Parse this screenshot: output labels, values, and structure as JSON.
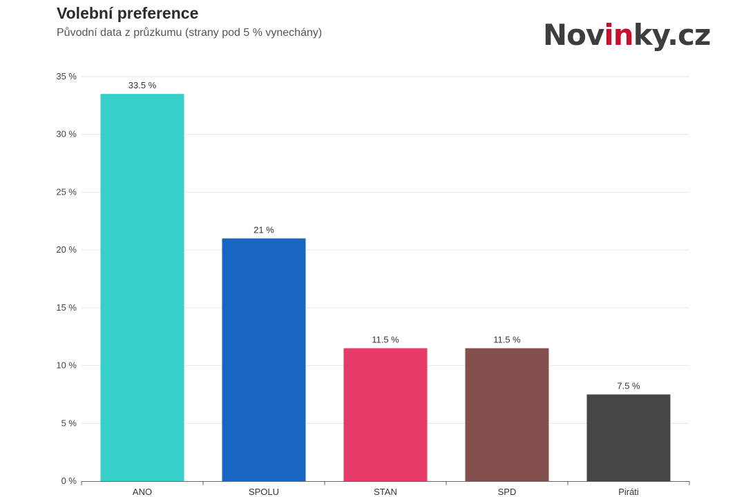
{
  "header": {
    "title": "Volební preference",
    "subtitle": "Původní data z průzkumu (strany pod 5 % vynechány)"
  },
  "logo": {
    "part1": "Nov",
    "accent": "in",
    "part2": "ky.cz",
    "accent_color": "#c8102e"
  },
  "chart_data": {
    "type": "bar",
    "title": "Volební preference",
    "subtitle": "Původní data z průzkumu (strany pod 5 % vynechány)",
    "xlabel": "",
    "ylabel": "",
    "categories": [
      "ANO",
      "SPOLU",
      "STAN",
      "SPD",
      "Piráti"
    ],
    "values": [
      33.5,
      21,
      11.5,
      11.5,
      7.5
    ],
    "data_labels": [
      "33.5 %",
      "21 %",
      "11.5 %",
      "11.5 %",
      "7.5 %"
    ],
    "colors": [
      "#36cfc9",
      "#1766c1",
      "#e63a68",
      "#83504e",
      "#454545"
    ],
    "ylim": [
      0,
      35
    ],
    "yticks": [
      0,
      5,
      10,
      15,
      20,
      25,
      30,
      35
    ],
    "ytick_labels": [
      "0 %",
      "5 %",
      "10 %",
      "15 %",
      "20 %",
      "25 %",
      "30 %",
      "35 %"
    ],
    "grid": true,
    "legend": "none"
  }
}
